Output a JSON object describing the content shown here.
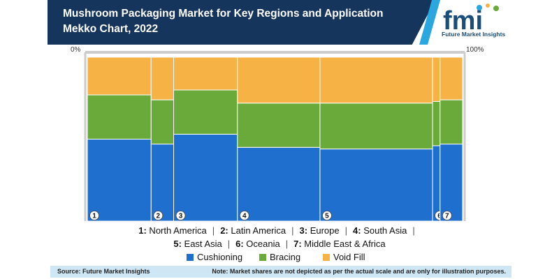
{
  "header": {
    "title": "Mushroom Packaging Market for Key Regions and Application Mekko Chart, 2022",
    "logo_text": "fmi",
    "logo_subtitle": "Future Market Insights"
  },
  "colors": {
    "header_bg": "#16355c",
    "accent": "#2aa7de",
    "cushioning": "#1f6fce",
    "bracing": "#6aaa3a",
    "void_fill": "#f6b245",
    "footer_bg": "#cfe7f5"
  },
  "chart_data": {
    "type": "mekko",
    "axis_labels": {
      "left": "0%",
      "right": "100%"
    },
    "categories": [
      {
        "id": "1",
        "label": "North America",
        "width": 17
      },
      {
        "id": "2",
        "label": "Latin America",
        "width": 6
      },
      {
        "id": "3",
        "label": "Europe",
        "width": 17
      },
      {
        "id": "4",
        "label": "South Asia",
        "width": 22
      },
      {
        "id": "5",
        "label": "East Asia",
        "width": 30
      },
      {
        "id": "6",
        "label": "Oceania",
        "width": 2
      },
      {
        "id": "7",
        "label": "Middle East & Africa",
        "width": 6
      }
    ],
    "series": [
      {
        "name": "Cushioning",
        "values": [
          50,
          47,
          53,
          45,
          44,
          46,
          47
        ]
      },
      {
        "name": "Bracing",
        "values": [
          27,
          27,
          27,
          27,
          28,
          27,
          27
        ]
      },
      {
        "name": "Void Fill",
        "values": [
          23,
          26,
          20,
          28,
          28,
          27,
          26
        ]
      }
    ]
  },
  "legend_regions": [
    "1: North America",
    "2: Latin America",
    "3: Europe",
    "4: South Asia",
    "5: East Asia",
    "6: Oceania",
    "7: Middle East & Africa"
  ],
  "legend_series": [
    "Cushioning",
    "Bracing",
    "Void Fill"
  ],
  "footer": {
    "source": "Source: Future Market Insights",
    "note": "Note: Market shares are not depicted as per the actual scale and are only for illustration purposes."
  }
}
